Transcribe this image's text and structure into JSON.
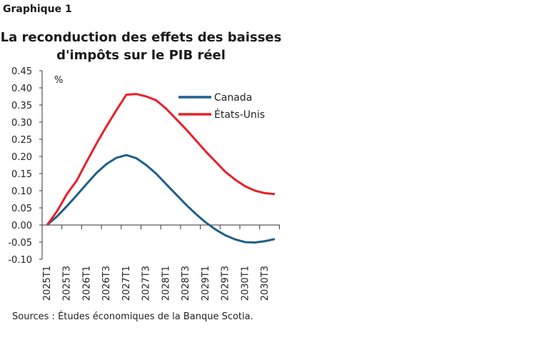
{
  "label": "Graphique 1",
  "source": "Sources : Études économiques de la Banque Scotia.",
  "chart_data": {
    "type": "line",
    "title": "La reconduction des effets des baisses d'impôts sur le PIB réel",
    "ylabel": "%",
    "xlabel": "",
    "ylim": [
      -0.1,
      0.45
    ],
    "yticks": [
      "0.45",
      "0.40",
      "0.35",
      "0.30",
      "0.25",
      "0.20",
      "0.15",
      "0.10",
      "0.05",
      "0.00",
      "-0.05",
      "-0.10"
    ],
    "x": [
      "2025T1",
      "2025T2",
      "2025T3",
      "2025T4",
      "2026T1",
      "2026T2",
      "2026T3",
      "2026T4",
      "2027T1",
      "2027T2",
      "2027T3",
      "2027T4",
      "2028T1",
      "2028T2",
      "2028T3",
      "2028T4",
      "2029T1",
      "2029T2",
      "2029T3",
      "2029T4",
      "2030T1",
      "2030T2",
      "2030T3",
      "2030T4"
    ],
    "xticklabels": [
      "2025T1",
      "2025T3",
      "2026T1",
      "2026T3",
      "2027T1",
      "2027T3",
      "2028T1",
      "2028T3",
      "2029T1",
      "2029T3",
      "2030T1",
      "2030T3"
    ],
    "grid": false,
    "legend": "top-right",
    "series": [
      {
        "name": "Canada",
        "color": "#1f5f8b",
        "values": [
          0,
          0.025,
          0.055,
          0.087,
          0.12,
          0.152,
          0.178,
          0.196,
          0.204,
          0.195,
          0.175,
          0.15,
          0.12,
          0.09,
          0.06,
          0.033,
          0.008,
          -0.013,
          -0.03,
          -0.042,
          -0.05,
          -0.051,
          -0.047,
          -0.041
        ]
      },
      {
        "name": "États-Unis",
        "color": "#e8202a",
        "values": [
          0,
          0.04,
          0.09,
          0.13,
          0.185,
          0.238,
          0.288,
          0.335,
          0.38,
          0.382,
          0.375,
          0.364,
          0.34,
          0.31,
          0.28,
          0.248,
          0.215,
          0.185,
          0.155,
          0.132,
          0.113,
          0.1,
          0.093,
          0.09
        ]
      }
    ]
  }
}
